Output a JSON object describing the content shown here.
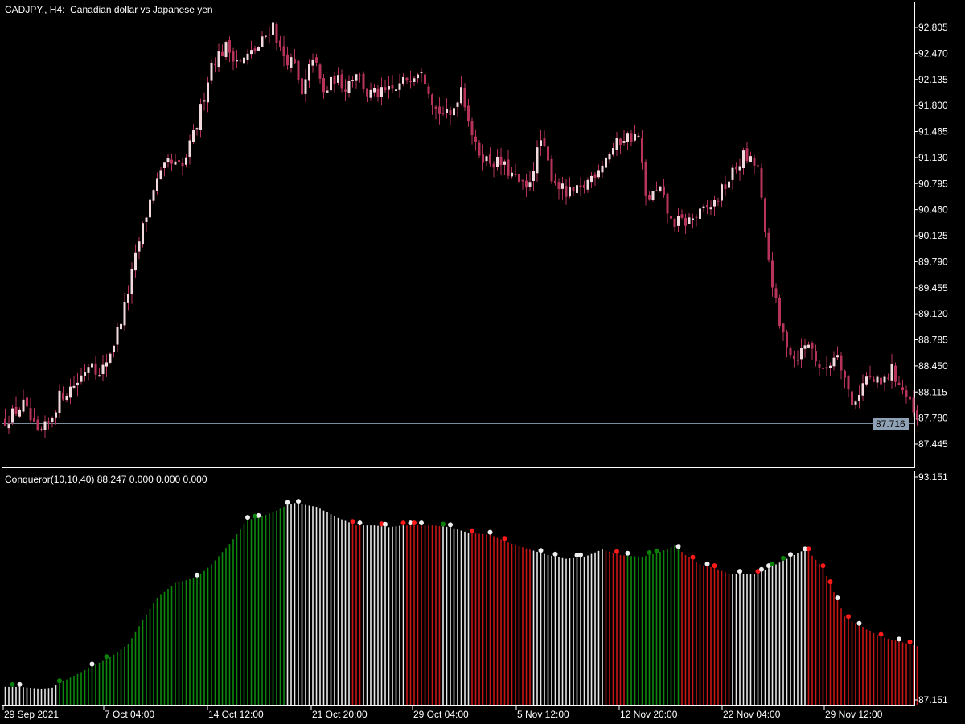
{
  "header": {
    "symbol_line": "CADJPY., H4:  Canadian dollar vs Japanese yen"
  },
  "indicator": {
    "line": "Conqueror(10,10,40) 88.247 0.000 0.000 0.000"
  },
  "current_price": {
    "label": "87.716",
    "value": 87.716,
    "line_color": "#7b8b9b",
    "tag_color": "#8fa1b5"
  },
  "colors": {
    "background": "#000000",
    "frame": "#ffffff",
    "bull_candle": "#f2d9de",
    "bear_candle": "#b8335a",
    "wick": "#b8335a",
    "hist_green": "#0d8a0d",
    "hist_white": "#e6e6e6",
    "hist_red": "#c81414",
    "dot_green": "#0a7f0a",
    "dot_white": "#eeeeee",
    "dot_red": "#ff1a1a"
  },
  "chart_data": [
    {
      "type": "candlestick",
      "title": "CADJPY., H4:  Canadian dollar vs Japanese yen",
      "ylim": [
        87.21,
        93.14
      ],
      "y_ticks": [
        "92.805",
        "92.470",
        "92.135",
        "91.800",
        "91.465",
        "91.130",
        "90.795",
        "90.460",
        "90.125",
        "89.790",
        "89.455",
        "89.120",
        "88.785",
        "88.450",
        "88.115",
        "87.780",
        "87.445"
      ],
      "x_ticks": [
        "29 Sep 2021",
        "7 Oct 04:00",
        "14 Oct 12:00",
        "21 Oct 20:00",
        "29 Oct 04:00",
        "5 Nov 12:00",
        "12 Nov 20:00",
        "22 Nov 04:00",
        "29 Nov 12:00"
      ],
      "close_path": [
        [
          0,
          87.75
        ],
        [
          5,
          87.95
        ],
        [
          9,
          87.55
        ],
        [
          12,
          87.7
        ],
        [
          15,
          88.05
        ],
        [
          20,
          88.25
        ],
        [
          24,
          88.55
        ],
        [
          26,
          88.3
        ],
        [
          30,
          88.75
        ],
        [
          33,
          89.2
        ],
        [
          37,
          90.05
        ],
        [
          41,
          90.75
        ],
        [
          45,
          91.05
        ],
        [
          49,
          91.0
        ],
        [
          53,
          91.55
        ],
        [
          57,
          92.35
        ],
        [
          61,
          92.55
        ],
        [
          65,
          92.35
        ],
        [
          70,
          92.55
        ],
        [
          74,
          92.85
        ],
        [
          76,
          92.5
        ],
        [
          80,
          92.3
        ],
        [
          82,
          91.9
        ],
        [
          85,
          92.45
        ],
        [
          88,
          91.95
        ],
        [
          91,
          92.15
        ],
        [
          94,
          92.05
        ],
        [
          97,
          92.25
        ],
        [
          100,
          91.95
        ],
        [
          104,
          91.95
        ],
        [
          108,
          92.0
        ],
        [
          111,
          92.15
        ],
        [
          115,
          92.3
        ],
        [
          119,
          91.75
        ],
        [
          123,
          91.65
        ],
        [
          126,
          92.05
        ],
        [
          130,
          91.25
        ],
        [
          133,
          91.1
        ],
        [
          137,
          91.05
        ],
        [
          141,
          90.85
        ],
        [
          144,
          90.7
        ],
        [
          148,
          91.35
        ],
        [
          151,
          90.9
        ],
        [
          155,
          90.65
        ],
        [
          159,
          90.7
        ],
        [
          163,
          90.95
        ],
        [
          167,
          91.2
        ],
        [
          171,
          91.4
        ],
        [
          175,
          91.4
        ],
        [
          177,
          90.6
        ],
        [
          181,
          90.7
        ],
        [
          184,
          90.3
        ],
        [
          188,
          90.3
        ],
        [
          192,
          90.4
        ],
        [
          196,
          90.55
        ],
        [
          200,
          90.85
        ],
        [
          204,
          91.15
        ],
        [
          208,
          91.0
        ],
        [
          210,
          90.1
        ],
        [
          214,
          88.95
        ],
        [
          218,
          88.55
        ],
        [
          222,
          88.75
        ],
        [
          226,
          88.35
        ],
        [
          230,
          88.65
        ],
        [
          234,
          87.95
        ],
        [
          238,
          88.3
        ],
        [
          242,
          88.2
        ],
        [
          245,
          88.4
        ],
        [
          249,
          88.05
        ],
        [
          252,
          87.72
        ]
      ]
    },
    {
      "type": "bar",
      "title": "Conqueror(10,10,40) 88.247 0.000 0.000 0.000",
      "ylim": [
        87.151,
        93.151
      ],
      "y_ticks": [
        "93.151",
        "87.151"
      ],
      "x_ticks": [
        "29 Sep 2021",
        "7 Oct 04:00",
        "14 Oct 12:00",
        "21 Oct 20:00",
        "29 Oct 04:00",
        "5 Nov 12:00",
        "12 Nov 20:00",
        "22 Nov 04:00",
        "29 Nov 12:00"
      ],
      "envelope": [
        [
          0,
          87.5
        ],
        [
          4,
          87.5
        ],
        [
          10,
          87.45
        ],
        [
          13,
          87.48
        ],
        [
          15,
          87.6
        ],
        [
          19,
          87.8
        ],
        [
          24,
          88.05
        ],
        [
          29,
          88.3
        ],
        [
          34,
          88.65
        ],
        [
          38,
          89.3
        ],
        [
          42,
          89.9
        ],
        [
          47,
          90.3
        ],
        [
          53,
          90.45
        ],
        [
          57,
          90.8
        ],
        [
          62,
          91.35
        ],
        [
          67,
          92.0
        ],
        [
          70,
          92.05
        ],
        [
          75,
          92.25
        ],
        [
          78,
          92.4
        ],
        [
          80,
          92.45
        ],
        [
          86,
          92.35
        ],
        [
          92,
          92.05
        ],
        [
          97,
          91.85
        ],
        [
          102,
          91.85
        ],
        [
          106,
          91.8
        ],
        [
          110,
          91.85
        ],
        [
          114,
          91.85
        ],
        [
          118,
          91.85
        ],
        [
          123,
          91.8
        ],
        [
          128,
          91.65
        ],
        [
          134,
          91.6
        ],
        [
          140,
          91.35
        ],
        [
          145,
          91.2
        ],
        [
          150,
          91.05
        ],
        [
          155,
          90.95
        ],
        [
          160,
          91.0
        ],
        [
          165,
          91.2
        ],
        [
          170,
          91.05
        ],
        [
          176,
          91.0
        ],
        [
          180,
          91.1
        ],
        [
          185,
          91.3
        ],
        [
          188,
          91.05
        ],
        [
          192,
          90.8
        ],
        [
          196,
          90.7
        ],
        [
          200,
          90.55
        ],
        [
          205,
          90.55
        ],
        [
          208,
          90.55
        ],
        [
          212,
          90.75
        ],
        [
          216,
          90.95
        ],
        [
          220,
          91.15
        ],
        [
          222,
          91.15
        ],
        [
          226,
          90.7
        ],
        [
          229,
          90.05
        ],
        [
          232,
          89.4
        ],
        [
          235,
          89.2
        ],
        [
          238,
          89.05
        ],
        [
          242,
          88.85
        ],
        [
          246,
          88.75
        ],
        [
          250,
          88.65
        ],
        [
          252,
          88.6
        ]
      ],
      "color_segments": [
        [
          0,
          2,
          "white"
        ],
        [
          3,
          14,
          "white"
        ],
        [
          15,
          30,
          "green"
        ],
        [
          31,
          53,
          "green"
        ],
        [
          54,
          67,
          "green"
        ],
        [
          68,
          72,
          "green"
        ],
        [
          73,
          77,
          "green"
        ],
        [
          78,
          95,
          "white"
        ],
        [
          96,
          98,
          "red"
        ],
        [
          99,
          110,
          "white"
        ],
        [
          111,
          120,
          "red"
        ],
        [
          121,
          128,
          "white"
        ],
        [
          129,
          145,
          "red"
        ],
        [
          146,
          165,
          "white"
        ],
        [
          166,
          171,
          "red"
        ],
        [
          172,
          180,
          "green"
        ],
        [
          181,
          186,
          "green"
        ],
        [
          187,
          200,
          "red"
        ],
        [
          201,
          210,
          "white"
        ],
        [
          211,
          221,
          "white"
        ],
        [
          222,
          230,
          "red"
        ],
        [
          231,
          240,
          "red"
        ],
        [
          241,
          252,
          "red"
        ]
      ],
      "dots": [
        [
          2,
          "green"
        ],
        [
          4,
          "white"
        ],
        [
          15,
          "green"
        ],
        [
          24,
          "white"
        ],
        [
          28,
          "green"
        ],
        [
          53,
          "white"
        ],
        [
          67,
          "white"
        ],
        [
          69,
          "green"
        ],
        [
          70,
          "white"
        ],
        [
          78,
          "white"
        ],
        [
          81,
          "white"
        ],
        [
          96,
          "red"
        ],
        [
          98,
          "white"
        ],
        [
          104,
          "red"
        ],
        [
          105,
          "white"
        ],
        [
          110,
          "red"
        ],
        [
          112,
          "white"
        ],
        [
          113,
          "red"
        ],
        [
          115,
          "white"
        ],
        [
          121,
          "green"
        ],
        [
          123,
          "white"
        ],
        [
          129,
          "red"
        ],
        [
          134,
          "white"
        ],
        [
          138,
          "red"
        ],
        [
          148,
          "white"
        ],
        [
          152,
          "white"
        ],
        [
          158,
          "white"
        ],
        [
          159,
          "white"
        ],
        [
          169,
          "red"
        ],
        [
          172,
          "white"
        ],
        [
          178,
          "green"
        ],
        [
          180,
          "green"
        ],
        [
          186,
          "white"
        ],
        [
          190,
          "red"
        ],
        [
          194,
          "white"
        ],
        [
          196,
          "red"
        ],
        [
          203,
          "white"
        ],
        [
          208,
          "red"
        ],
        [
          209,
          "white"
        ],
        [
          211,
          "white"
        ],
        [
          212,
          "green"
        ],
        [
          217,
          "white"
        ],
        [
          215,
          "green"
        ],
        [
          221,
          "white"
        ],
        [
          222,
          "red"
        ],
        [
          226,
          "red"
        ],
        [
          228,
          "red"
        ],
        [
          230,
          "white"
        ],
        [
          233,
          "red"
        ],
        [
          236,
          "white"
        ],
        [
          242,
          "red"
        ],
        [
          247,
          "white"
        ],
        [
          250,
          "red"
        ]
      ]
    }
  ]
}
